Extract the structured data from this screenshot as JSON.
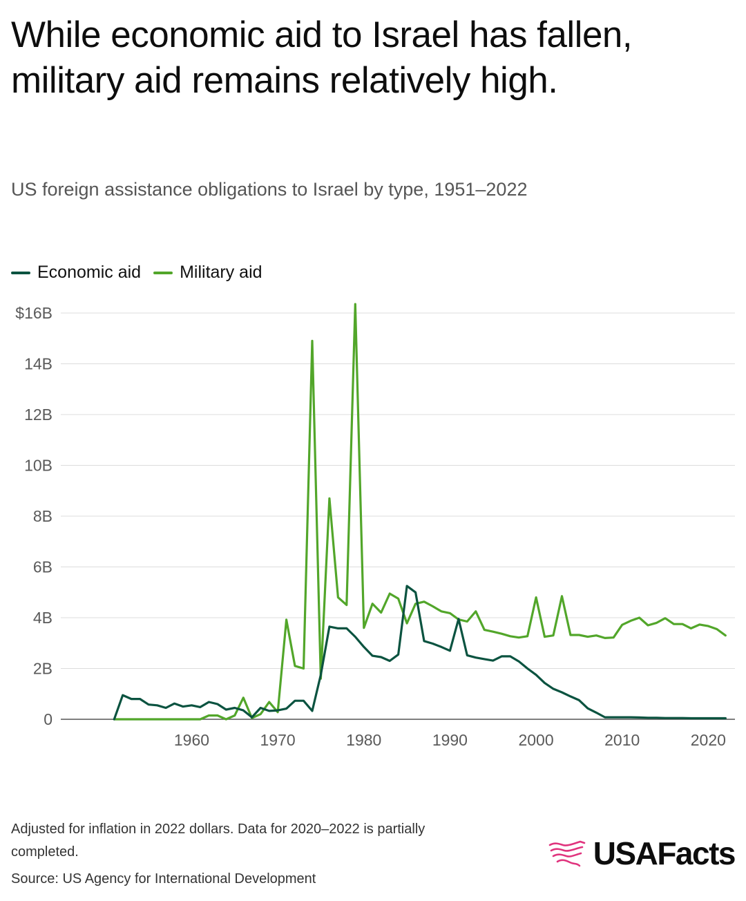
{
  "title": "While economic aid to Israel has fallen, military aid remains relatively high.",
  "subtitle": "US foreign assistance obligations to Israel by type, 1951–2022",
  "footnote": "Adjusted for inflation in 2022 dollars. Data for 2020–2022 is partially completed.",
  "source": "Source: US Agency for International Development",
  "brand": "USAFacts",
  "brand_color": "#e0337d",
  "colors": {
    "economic": "#0b5340",
    "military": "#52a62a",
    "grid": "#dcdcdc",
    "axis": "#555555"
  },
  "chart_data": {
    "type": "line",
    "x_unit": "year",
    "y_unit": "USD billions",
    "xlim": [
      1951,
      2022
    ],
    "ylim": [
      0,
      16
    ],
    "x_ticks": [
      1960,
      1970,
      1980,
      1990,
      2000,
      2010,
      2020
    ],
    "x_tick_labels": [
      "1960",
      "1970",
      "1980",
      "1990",
      "2000",
      "2010",
      "2020"
    ],
    "y_ticks": [
      0,
      2,
      4,
      6,
      8,
      10,
      12,
      14,
      16
    ],
    "y_tick_labels": [
      "0",
      "2B",
      "4B",
      "6B",
      "8B",
      "10B",
      "12B",
      "14B",
      "$16B"
    ],
    "grid": true,
    "legend_position": "top-left",
    "x": [
      1951,
      1952,
      1953,
      1954,
      1955,
      1956,
      1957,
      1958,
      1959,
      1960,
      1961,
      1962,
      1963,
      1964,
      1965,
      1966,
      1967,
      1968,
      1969,
      1970,
      1971,
      1972,
      1973,
      1974,
      1975,
      1976,
      1977,
      1978,
      1979,
      1980,
      1981,
      1982,
      1983,
      1984,
      1985,
      1986,
      1987,
      1988,
      1989,
      1990,
      1991,
      1992,
      1993,
      1994,
      1995,
      1996,
      1997,
      1998,
      1999,
      2000,
      2001,
      2002,
      2003,
      2004,
      2005,
      2006,
      2007,
      2008,
      2009,
      2010,
      2011,
      2012,
      2013,
      2014,
      2015,
      2016,
      2017,
      2018,
      2019,
      2020,
      2021,
      2022
    ],
    "series": [
      {
        "name": "Economic aid",
        "color": "#0b5340",
        "values": [
          0,
          0.95,
          0.8,
          0.8,
          0.58,
          0.55,
          0.45,
          0.62,
          0.5,
          0.55,
          0.48,
          0.68,
          0.6,
          0.38,
          0.45,
          0.35,
          0.08,
          0.45,
          0.33,
          0.35,
          0.42,
          0.73,
          0.73,
          0.33,
          1.75,
          3.65,
          3.58,
          3.58,
          3.25,
          2.85,
          2.5,
          2.45,
          2.3,
          2.55,
          5.25,
          5.0,
          3.08,
          2.98,
          2.85,
          2.7,
          3.95,
          2.52,
          2.43,
          2.37,
          2.31,
          2.48,
          2.48,
          2.28,
          2.0,
          1.75,
          1.43,
          1.2,
          1.06,
          0.9,
          0.75,
          0.43,
          0.26,
          0.08,
          0.08,
          0.08,
          0.08,
          0.07,
          0.06,
          0.06,
          0.05,
          0.05,
          0.05,
          0.04,
          0.04,
          0.04,
          0.04,
          0.04
        ]
      },
      {
        "name": "Military aid",
        "color": "#52a62a",
        "values": [
          0,
          0,
          0,
          0,
          0,
          0,
          0,
          0,
          0,
          0,
          0,
          0.15,
          0.15,
          0,
          0.15,
          0.85,
          0.05,
          0.2,
          0.68,
          0.28,
          3.92,
          2.1,
          2.0,
          14.9,
          1.6,
          8.7,
          4.8,
          4.5,
          16.35,
          3.6,
          4.55,
          4.2,
          4.95,
          4.75,
          3.78,
          4.55,
          4.63,
          4.45,
          4.25,
          4.18,
          3.93,
          3.85,
          4.25,
          3.52,
          3.45,
          3.37,
          3.27,
          3.22,
          3.27,
          4.8,
          3.25,
          3.3,
          4.85,
          3.32,
          3.32,
          3.25,
          3.3,
          3.2,
          3.22,
          3.72,
          3.88,
          4.0,
          3.7,
          3.8,
          3.98,
          3.75,
          3.75,
          3.58,
          3.73,
          3.67,
          3.55,
          3.3
        ]
      }
    ]
  }
}
